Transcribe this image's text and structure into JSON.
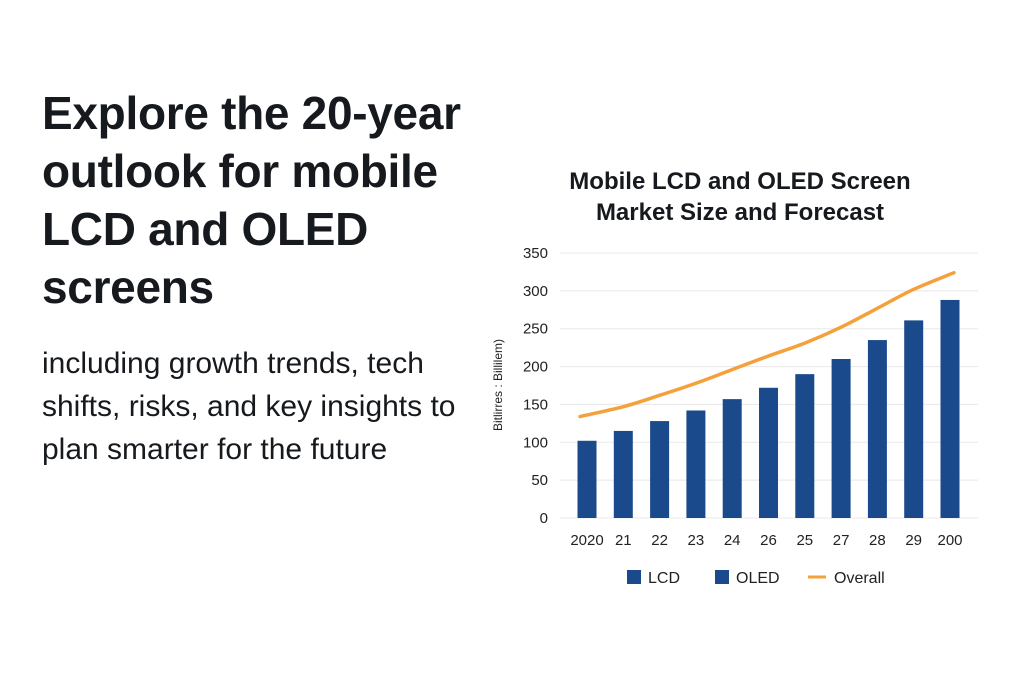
{
  "left_panel": {
    "headline": "Explore the 20-year outlook for mobile LCD and OLED screens",
    "subtext": "including growth trends, tech shifts, risks, and key insights to plan smarter for the future"
  },
  "colors": {
    "bar": "#1b4a8c",
    "line": "#f5a13b",
    "grid": "#e8e8e8",
    "text": "#16191d"
  },
  "chart_data": {
    "type": "bar",
    "title": "Mobile LCD and OLED Screen Market Size and Forecast",
    "title_lines": [
      "Mobile LCD and OLED Screen",
      "Market Size and Forecast"
    ],
    "xlabel": "",
    "ylabel": "Bitlirres : Billilem)",
    "ylim": [
      0,
      350
    ],
    "yticks": [
      0,
      50,
      100,
      150,
      200,
      250,
      300,
      350
    ],
    "grid": true,
    "categories": [
      "2020",
      "21",
      "22",
      "23",
      "24",
      "26",
      "25",
      "27",
      "28",
      "29",
      "200"
    ],
    "series": [
      {
        "name": "LCD / OLED",
        "kind": "bar",
        "values": [
          102,
          115,
          128,
          142,
          157,
          172,
          190,
          210,
          235,
          261,
          288
        ]
      },
      {
        "name": "Overall",
        "kind": "line",
        "values": [
          134,
          147,
          162,
          178,
          196,
          214,
          231,
          252,
          277,
          302,
          324
        ]
      }
    ],
    "legend": {
      "placement": "bottom",
      "entries": [
        {
          "label": "LCD",
          "marker": "square"
        },
        {
          "label": "OLED",
          "marker": "square"
        },
        {
          "label": "Overall",
          "marker": "line"
        }
      ]
    }
  }
}
